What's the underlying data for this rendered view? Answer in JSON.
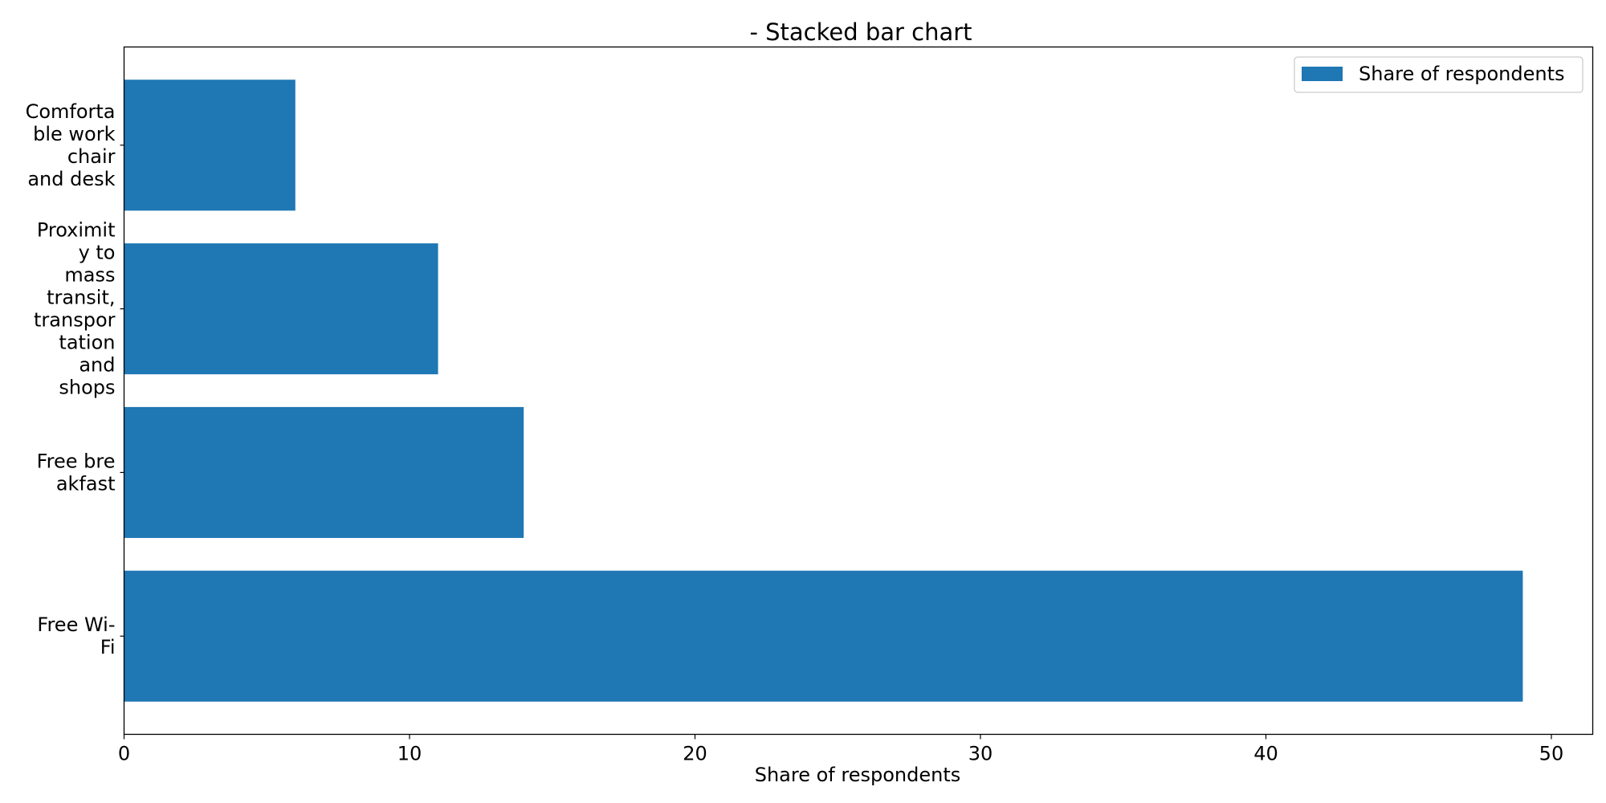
{
  "chart_data": {
    "type": "bar",
    "orientation": "horizontal",
    "title": "- Stacked bar chart",
    "xlabel": "Share of respondents",
    "ylabel": "",
    "categories": [
      "Comfortable work chair and desk",
      "Proximity to mass transit, transportation and shops",
      "Free breakfast",
      "Free Wi-Fi"
    ],
    "category_display_lines": [
      [
        "Comforta",
        "ble work",
        "chair",
        "and desk"
      ],
      [
        "Proximit",
        "y to",
        "mass",
        "transit,",
        "transpor",
        "tation",
        "and",
        "shops"
      ],
      [
        "Free bre",
        "akfast"
      ],
      [
        "Free Wi-",
        "Fi"
      ]
    ],
    "series": [
      {
        "name": "Share of respondents",
        "values": [
          6,
          11,
          14,
          49
        ]
      }
    ],
    "xlim": [
      0,
      51.45
    ],
    "xticks": [
      0,
      10,
      20,
      30,
      40,
      50
    ],
    "xtick_labels": [
      "0",
      "10",
      "20",
      "30",
      "40",
      "50"
    ],
    "grid": false,
    "legend_position": "top-right",
    "bar_color": "#1f77b4"
  }
}
